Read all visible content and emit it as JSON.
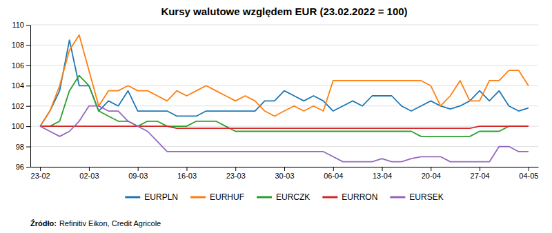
{
  "chart_data": {
    "type": "line",
    "title": "Kursy walutowe względem EUR (23.02.2022 = 100)",
    "source_label": "Źródło:",
    "source": "Refinitiv Eikon, Credit Agricole",
    "x": [
      0,
      0.2,
      0.4,
      0.6,
      0.8,
      1.0,
      1.2,
      1.4,
      1.6,
      1.8,
      2.0,
      2.2,
      2.4,
      2.6,
      2.8,
      3.0,
      3.2,
      3.4,
      3.6,
      3.8,
      4.0,
      4.2,
      4.4,
      4.6,
      4.8,
      5.0,
      5.2,
      5.4,
      5.6,
      5.8,
      6.0,
      6.2,
      6.4,
      6.6,
      6.8,
      7.0,
      7.2,
      7.4,
      7.6,
      7.8,
      8.0,
      8.2,
      8.4,
      8.6,
      8.8,
      9.0,
      9.2,
      9.4,
      9.6,
      9.8,
      10.0
    ],
    "xlim": [
      -0.2,
      10.2
    ],
    "xticks": [
      {
        "value": 0,
        "label": "23-02"
      },
      {
        "value": 1,
        "label": "02-03"
      },
      {
        "value": 2,
        "label": "09-03"
      },
      {
        "value": 3,
        "label": "16-03"
      },
      {
        "value": 4,
        "label": "23-03"
      },
      {
        "value": 5,
        "label": "30-03"
      },
      {
        "value": 6,
        "label": "06-04"
      },
      {
        "value": 7,
        "label": "13-04"
      },
      {
        "value": 8,
        "label": "20-04"
      },
      {
        "value": 9,
        "label": "27-04"
      },
      {
        "value": 10,
        "label": "04-05"
      }
    ],
    "ylim": [
      96,
      110
    ],
    "yticks": [
      96,
      98,
      100,
      102,
      104,
      106,
      108,
      110
    ],
    "grid": true,
    "legend": "bottom",
    "series": [
      {
        "name": "EURPLN",
        "values": [
          100.0,
          101.5,
          103.5,
          108.5,
          104.0,
          104.0,
          101.5,
          102.5,
          102.0,
          103.5,
          101.5,
          101.5,
          101.5,
          101.5,
          101.0,
          101.0,
          101.0,
          101.5,
          101.5,
          101.5,
          101.5,
          101.5,
          101.5,
          102.5,
          102.5,
          103.5,
          103.0,
          102.5,
          103.0,
          102.5,
          101.5,
          102.0,
          102.5,
          102.0,
          103.0,
          103.0,
          103.0,
          102.0,
          101.5,
          102.0,
          102.5,
          102.0,
          101.7,
          102.0,
          102.5,
          103.5,
          102.5,
          103.5,
          102.0,
          101.5,
          101.8
        ]
      },
      {
        "name": "EURHUF",
        "values": [
          100.0,
          101.5,
          104.0,
          107.5,
          109.0,
          105.5,
          102.0,
          103.5,
          103.5,
          104.0,
          103.5,
          103.5,
          103.0,
          102.5,
          103.5,
          103.0,
          103.5,
          104.0,
          103.5,
          103.0,
          102.5,
          103.0,
          102.5,
          101.5,
          101.0,
          101.5,
          102.0,
          101.5,
          102.0,
          101.5,
          104.5,
          104.5,
          104.5,
          104.5,
          104.5,
          104.5,
          104.5,
          104.5,
          104.5,
          104.5,
          104.0,
          102.0,
          103.0,
          104.5,
          102.5,
          102.5,
          104.5,
          104.5,
          105.5,
          105.5,
          104.0
        ]
      },
      {
        "name": "EURCZK",
        "values": [
          100.0,
          100.0,
          100.5,
          103.5,
          105.0,
          104.0,
          101.5,
          101.0,
          100.5,
          100.5,
          100.0,
          100.5,
          100.5,
          100.0,
          100.0,
          100.0,
          100.5,
          100.5,
          100.5,
          100.0,
          99.5,
          99.5,
          99.5,
          99.5,
          99.5,
          99.5,
          99.5,
          99.5,
          99.5,
          99.5,
          99.5,
          99.5,
          99.5,
          99.5,
          99.5,
          99.5,
          99.5,
          99.5,
          99.5,
          99.0,
          99.0,
          99.0,
          99.0,
          99.0,
          99.0,
          99.5,
          99.5,
          99.5,
          100.0,
          100.0,
          100.0
        ]
      },
      {
        "name": "EURRON",
        "values": [
          100.0,
          100.0,
          100.0,
          100.0,
          100.0,
          100.0,
          100.0,
          100.0,
          100.0,
          100.0,
          100.0,
          100.0,
          100.0,
          100.0,
          99.8,
          99.8,
          99.8,
          99.8,
          99.8,
          99.8,
          99.8,
          99.8,
          99.8,
          99.8,
          99.8,
          99.8,
          99.8,
          99.8,
          99.8,
          99.8,
          99.8,
          99.8,
          99.8,
          99.8,
          99.8,
          99.8,
          99.8,
          99.8,
          99.8,
          99.8,
          99.8,
          99.8,
          99.8,
          99.8,
          99.8,
          100.0,
          100.0,
          100.0,
          100.0,
          100.0,
          100.0
        ]
      },
      {
        "name": "EURSEK",
        "values": [
          100.0,
          99.5,
          99.0,
          99.5,
          100.5,
          102.0,
          102.0,
          101.5,
          101.5,
          100.5,
          100.0,
          99.5,
          98.5,
          97.5,
          97.5,
          97.5,
          97.5,
          97.5,
          97.5,
          97.5,
          97.5,
          97.5,
          97.5,
          97.5,
          97.5,
          97.5,
          97.5,
          97.5,
          97.5,
          97.5,
          97.0,
          96.5,
          96.5,
          96.5,
          96.5,
          96.8,
          96.5,
          96.5,
          96.8,
          97.0,
          97.0,
          97.0,
          96.5,
          96.5,
          96.5,
          96.5,
          96.5,
          98.0,
          98.0,
          97.5,
          97.5
        ]
      }
    ]
  }
}
